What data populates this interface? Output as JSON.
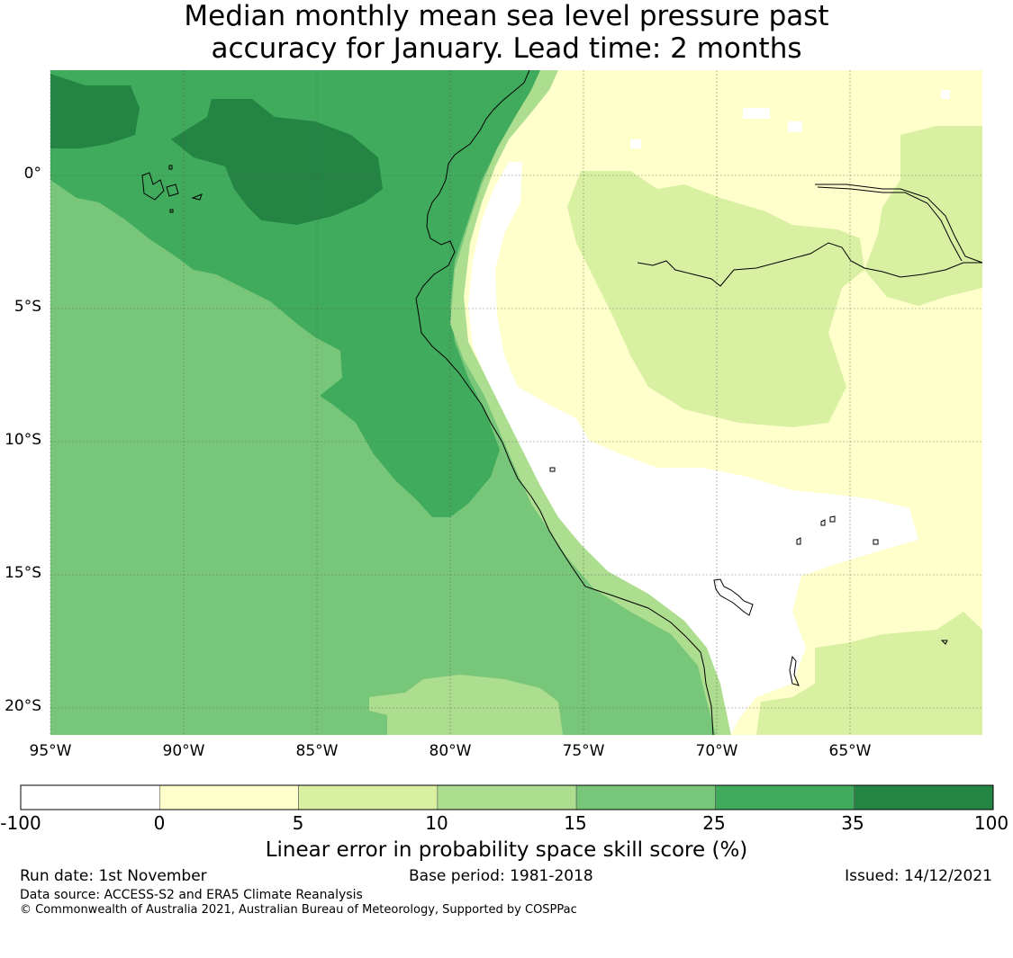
{
  "title": {
    "line1": "Median monthly mean sea level pressure past",
    "line2": "accuracy for January. Lead time: 2 months"
  },
  "map": {
    "lat_labels": [
      "0°",
      "5°S",
      "10°S",
      "15°S",
      "20°S"
    ],
    "lon_labels": [
      "95°W",
      "90°W",
      "85°W",
      "80°W",
      "75°W",
      "70°W",
      "65°W"
    ],
    "lon_range": [
      -95,
      -60
    ],
    "lat_range": [
      -21,
      4
    ],
    "gridlines": true
  },
  "colorbar": {
    "boundaries": [
      "-100",
      "0",
      "5",
      "10",
      "15",
      "25",
      "35",
      "100"
    ],
    "colors": [
      "#ffffff",
      "#ffffcc",
      "#d9f0a3",
      "#addd8e",
      "#78c679",
      "#41ab5d",
      "#238443"
    ],
    "label": "Linear error in probability space skill score (%)"
  },
  "footer": {
    "run_date": "Run date: 1st November",
    "base_period": "Base period: 1981-2018",
    "issued": "Issued: 14/12/2021",
    "data_source": "Data source: ACCESS-S2 and ERA5 Climate Reanalysis",
    "copyright": "© Commonwealth of Australia 2021, Australian Bureau of Meteorology, Supported by COSPPac"
  }
}
